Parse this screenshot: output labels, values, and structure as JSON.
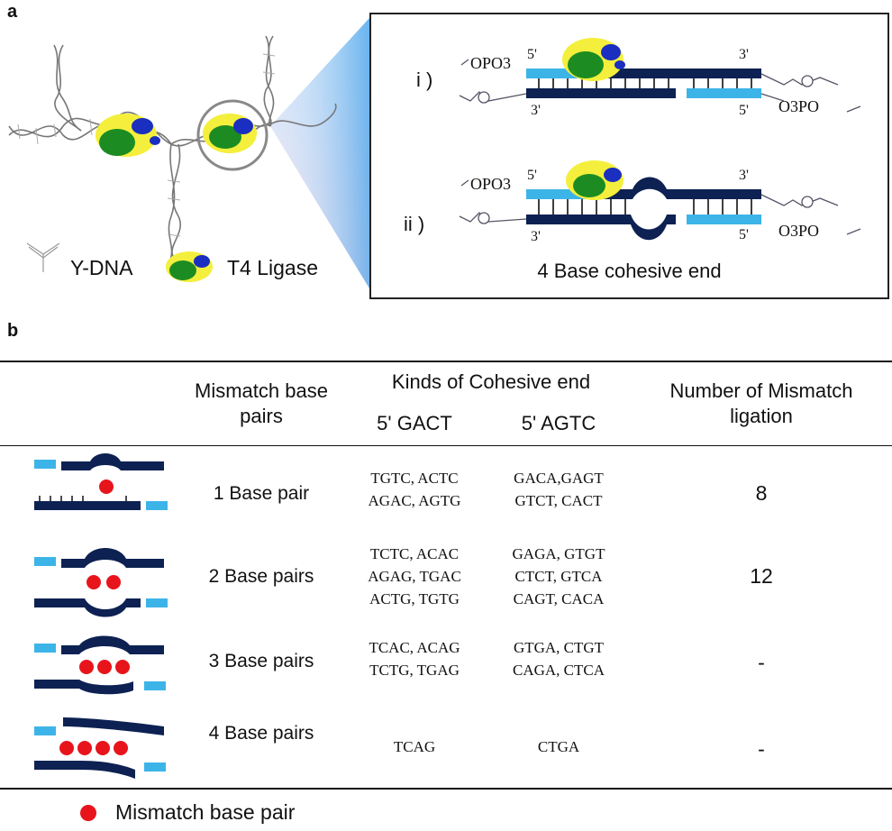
{
  "panel_a": {
    "label": "a",
    "legend": {
      "ydna": "Y-DNA",
      "ligase": "T4 Ligase"
    },
    "inset": {
      "row_i": "i )",
      "row_ii": "ii )",
      "left_group": "OPO3",
      "right_group": "O3PO",
      "end5": "5'",
      "end3": "3'",
      "comma": ",",
      "caption": "4 Base cohesive end"
    }
  },
  "panel_b": {
    "label": "b",
    "headers": {
      "mismatch": "Mismatch base pairs",
      "kinds": "Kinds of Cohesive end",
      "end1": "5' GACT",
      "end2": "5' AGTC",
      "number": "Number of Mismatch ligation"
    },
    "rows": [
      {
        "label": "1 Base pair",
        "gact": [
          "TGTC, ACTC",
          "AGAC, AGTG"
        ],
        "agtc": [
          "GACA,GAGT",
          "GTCT, CACT"
        ],
        "number": "8",
        "mismatches": 1
      },
      {
        "label": "2 Base pairs",
        "gact": [
          "TCTC, ACAC",
          "AGAG, TGAC",
          "ACTG, TGTG"
        ],
        "agtc": [
          "GAGA, GTGT",
          "CTCT, GTCA",
          "CAGT, CACA"
        ],
        "number": "12",
        "mismatches": 2
      },
      {
        "label": "3 Base pairs",
        "gact": [
          "TCAC, ACAG",
          "TCTG, TGAG"
        ],
        "agtc": [
          "GTGA, CTGT",
          "CAGA, CTCA"
        ],
        "number": "-",
        "mismatches": 3
      },
      {
        "label": "4  Base pairs",
        "gact": [
          "TCAG"
        ],
        "agtc": [
          "CTGA"
        ],
        "number": "-",
        "mismatches": 4
      }
    ],
    "footer_legend": "Mismatch base pair"
  },
  "colors": {
    "dark_strand": "#0d2152",
    "light_strand": "#3db4e8",
    "mismatch": "#e8141c",
    "protein_yellow": "#f4ef3c",
    "protein_green": "#1c8c22",
    "protein_blue": "#1a2fc0"
  }
}
